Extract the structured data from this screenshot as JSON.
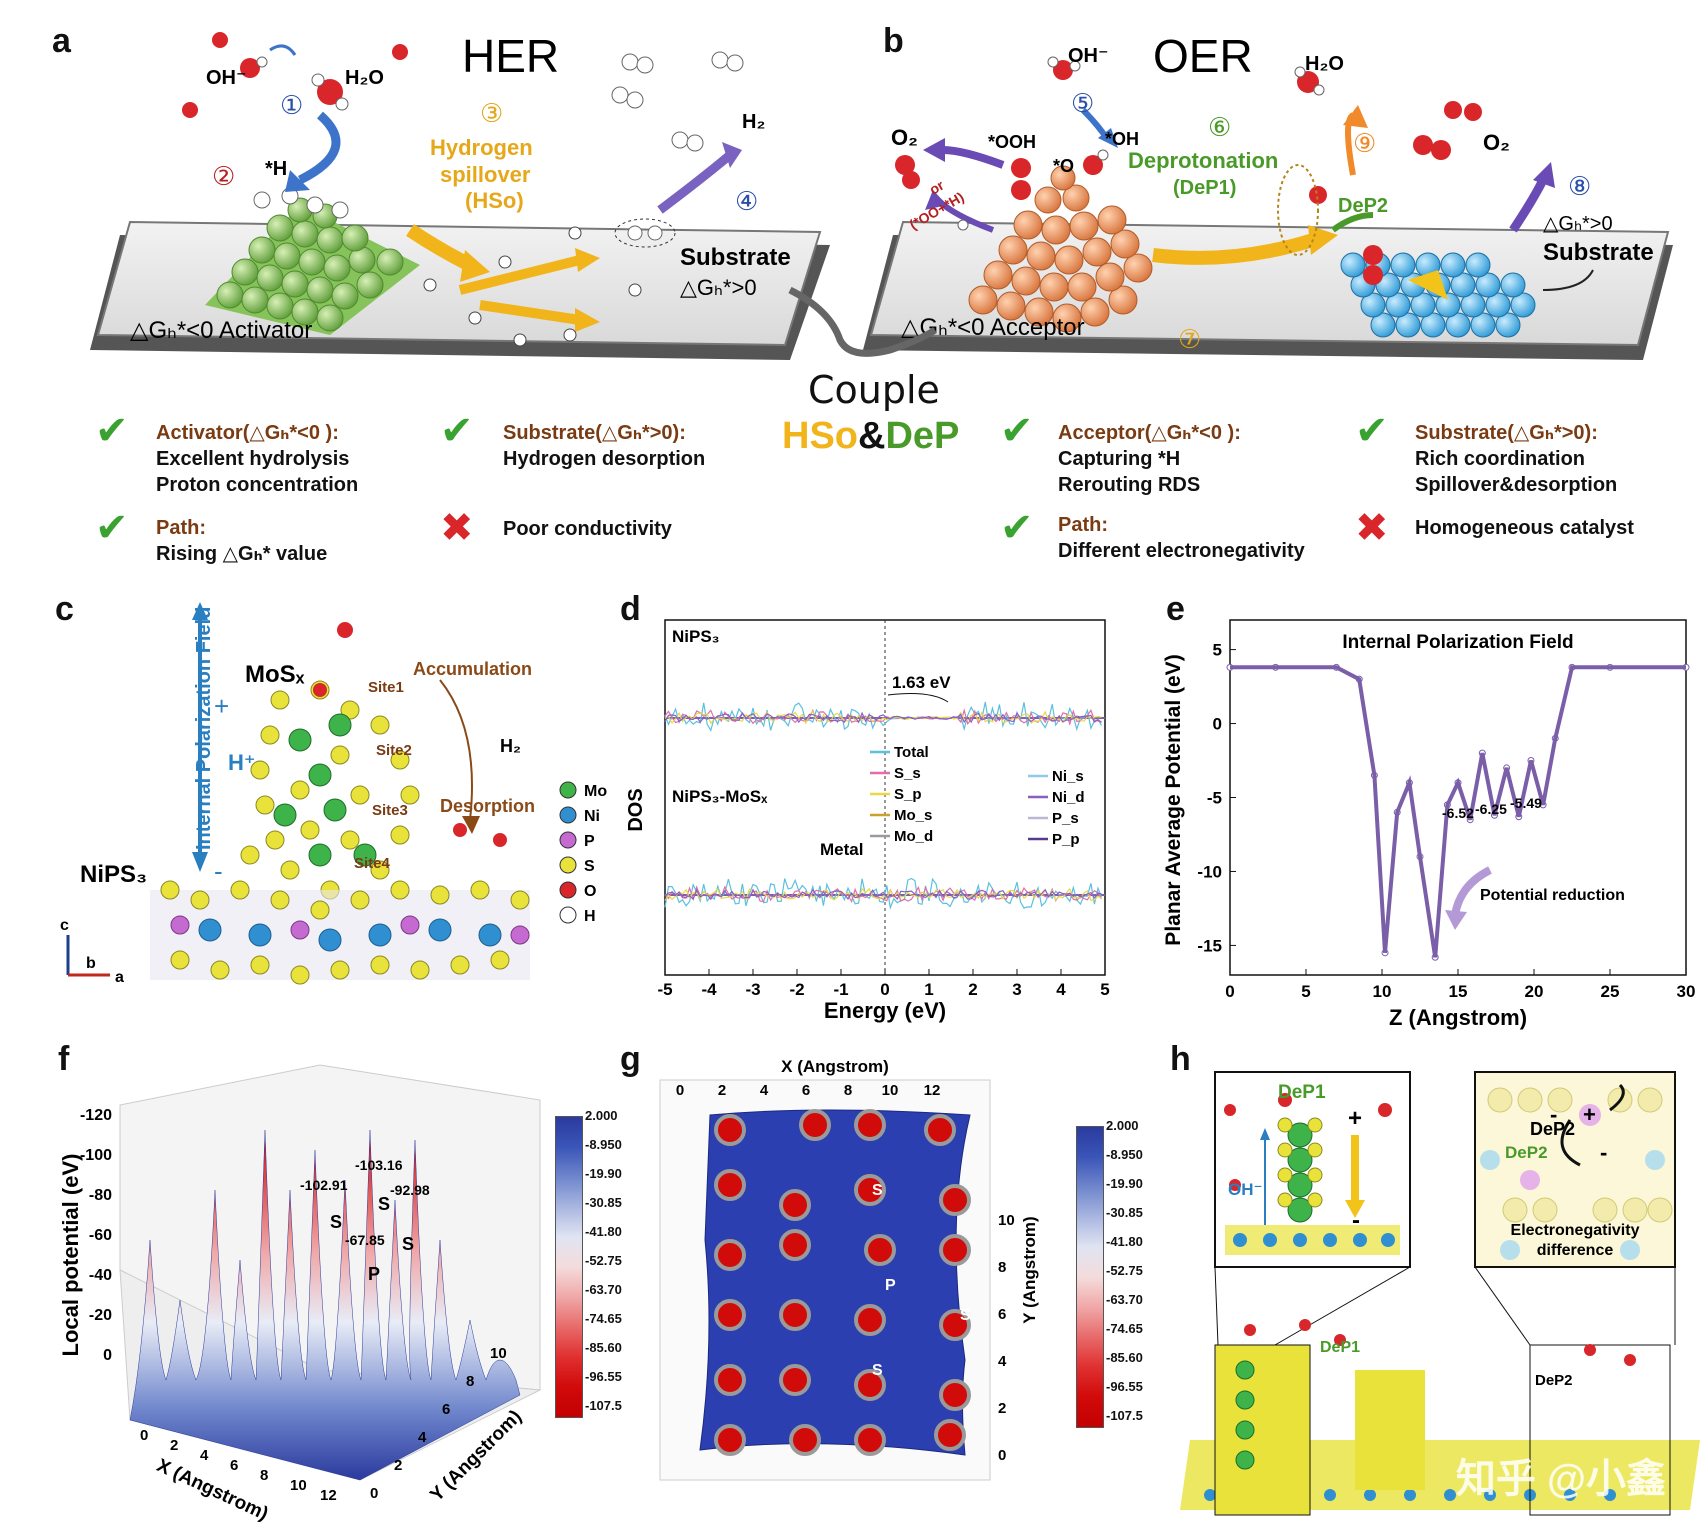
{
  "panel_labels": {
    "a": "a",
    "b": "b",
    "c": "c",
    "d": "d",
    "e": "e",
    "f": "f",
    "g": "g",
    "h": "h"
  },
  "a": {
    "title": "HER",
    "oh": "OH⁻",
    "h2o": "H₂O",
    "h": "*H",
    "h2": "H₂",
    "spill1": "Hydrogen",
    "spill2": "spillover",
    "spill3": "(HSo)",
    "substrate": "Substrate",
    "dg_sub": "△Gₕ*>0",
    "activator": "△Gₕ*<0 Activator",
    "steps": [
      "①",
      "②",
      "③",
      "④"
    ]
  },
  "b": {
    "title": "OER",
    "oh": "OH⁻",
    "h2o": "H₂O",
    "o2_left": "O₂",
    "o2_right": "O₂",
    "ooh": "*OOH",
    "star_oh": "*OH",
    "star_o": "*O",
    "or1": "or",
    "or2": "(*OO+*H)",
    "dep1": "Deprotonation",
    "dep1b": "(DeP1)",
    "dep2": "DeP2",
    "substrate": "Substrate",
    "dg_sub": "△Gₕ*>0",
    "acceptor": "△Gₕ*<0 Acceptor",
    "steps": [
      "⑤",
      "⑥",
      "⑦",
      "⑧",
      "⑨"
    ]
  },
  "couple": {
    "line1": "Couple",
    "hso": "HSo",
    "amp": "&",
    "dep": "DeP"
  },
  "notes": {
    "n1_h": "Activator(△Gₕ*<0 ):",
    "n1_a": "Excellent hydrolysis",
    "n1_b": "Proton concentration",
    "n2_h": "Substrate(△Gₕ*>0):",
    "n2_a": "Hydrogen desorption",
    "n3_h": "Path:",
    "n3_a": "Rising △Gₕ* value",
    "n4_a": "Poor conductivity",
    "n5_h": "Acceptor(△Gₕ*<0 ):",
    "n5_a": "Capturing *H",
    "n5_b": "Rerouting RDS",
    "n6_h": "Substrate(△Gₕ*>0):",
    "n6_a": "Rich coordination",
    "n6_b": "Spillover&desorption",
    "n7_h": "Path:",
    "n7_a": "Different electronegativity",
    "n8_a": "Homogeneous catalyst"
  },
  "c": {
    "mos": "MoSₓ",
    "nips": "NiPS₃",
    "field": "Internal Polarization Field",
    "plus": "+",
    "minus": "-",
    "hplus": "H⁺",
    "accum": "Accumulation",
    "desorp": "Desorption",
    "h2": "H₂",
    "sites": [
      "Site1",
      "Site2",
      "Site3",
      "Site4"
    ],
    "axes": {
      "c": "c",
      "b": "b",
      "a": "a"
    },
    "legend": [
      {
        "label": "Mo",
        "color": "#3db34a"
      },
      {
        "label": "Ni",
        "color": "#2f8fd0"
      },
      {
        "label": "P",
        "color": "#c46ad0"
      },
      {
        "label": "S",
        "color": "#e8e23a"
      },
      {
        "label": "O",
        "color": "#d8262a"
      },
      {
        "label": "H",
        "color": "#ffffff"
      }
    ]
  },
  "chart_data": [
    {
      "type": "line",
      "panel": "d",
      "xlabel": "Energy (eV)",
      "ylabel": "DOS",
      "xlim": [
        -5,
        5
      ],
      "x_ticks": [
        "-5",
        "-4",
        "-3",
        "-2",
        "-1",
        "0",
        "1",
        "2",
        "3",
        "4",
        "5"
      ],
      "subplot_labels": [
        "NiPS₃",
        "NiPS₃-MoSₓ"
      ],
      "annotations": [
        "1.63 eV",
        "Metal"
      ],
      "legend_col1": [
        "Total",
        "S_s",
        "S_p",
        "Mo_s",
        "Mo_d"
      ],
      "legend_col2": [
        "Ni_s",
        "Ni_d",
        "P_s",
        "P_p"
      ],
      "colors": {
        "Total": "#5bc0de",
        "S_s": "#e06fa8",
        "S_p": "#e8d84a",
        "Mo_s": "#c9a227",
        "Mo_d": "#9a9a9a",
        "Ni_s": "#8fcbe8",
        "Ni_d": "#8b5fbf",
        "P_s": "#b9b9d6",
        "P_p": "#5a3a8c"
      }
    },
    {
      "type": "line",
      "panel": "e",
      "title": "Internal Polarization Field",
      "xlabel": "Z (Angstrom)",
      "ylabel": "Planar Average Potential (eV)",
      "xlim": [
        0,
        30
      ],
      "ylim": [
        -17,
        7
      ],
      "x_ticks": [
        0,
        5,
        10,
        15,
        20,
        25,
        30
      ],
      "y_ticks": [
        5,
        0,
        -5,
        -10,
        -15
      ],
      "x": [
        0,
        3,
        7,
        8.5,
        9.5,
        10.2,
        11,
        11.8,
        12.5,
        13.5,
        14.3,
        15,
        15.8,
        16.6,
        17.4,
        18.2,
        19,
        19.8,
        20.6,
        21.4,
        22.5,
        25,
        30
      ],
      "y": [
        3.8,
        3.8,
        3.8,
        3.0,
        -3.5,
        -15.5,
        -6.0,
        -4.0,
        -9.0,
        -15.8,
        -5.5,
        -4.0,
        -6.5,
        -2.0,
        -6.2,
        -3.0,
        -6.3,
        -2.5,
        -5.5,
        -1.0,
        3.8,
        3.8,
        3.8
      ],
      "annotations": [
        "-6.52",
        "-6.25",
        "-5.49",
        "Potential reduction"
      ],
      "color": "#7b5ea8"
    },
    {
      "type": "heatmap",
      "panel": "f",
      "zlabel": "Local potential (eV)",
      "xlabel": "X (Angstrom)",
      "ylabel": "Y (Angstrom)",
      "z_ticks": [
        "-120",
        "-100",
        "-80",
        "-60",
        "-40",
        "-20",
        "0"
      ],
      "x_ticks": [
        "0",
        "2",
        "4",
        "6",
        "8",
        "10",
        "12"
      ],
      "y_ticks": [
        "0",
        "2",
        "4",
        "6",
        "8",
        "10"
      ],
      "annotations": [
        "-102.91",
        "-103.16",
        "-92.98",
        "-67.85"
      ],
      "atoms": [
        "S",
        "S",
        "S",
        "P"
      ]
    },
    {
      "type": "heatmap",
      "panel": "g",
      "xlabel": "X (Angstrom)",
      "ylabel": "Y (Angstrom)",
      "x_ticks": [
        "0",
        "2",
        "4",
        "6",
        "8",
        "10",
        "12"
      ],
      "y_ticks": [
        "0",
        "2",
        "4",
        "6",
        "8",
        "10"
      ],
      "atoms": [
        "S",
        "P",
        "S",
        "S"
      ]
    }
  ],
  "colorbar": {
    "ticks": [
      "2.000",
      "-8.950",
      "-19.90",
      "-30.85",
      "-41.80",
      "-52.75",
      "-63.70",
      "-74.65",
      "-85.60",
      "-96.55",
      "-107.5"
    ],
    "colors": [
      "#2b3a9e",
      "#3a55b8",
      "#6f86cc",
      "#a9b6e0",
      "#e0e4f2",
      "#f4dcdc",
      "#f0a8a8",
      "#e86a6a",
      "#e03030",
      "#d10a0a",
      "#c40000"
    ]
  },
  "h": {
    "dep1": "DeP1",
    "dep2": "DeP2",
    "oh": "OH⁻",
    "plus": "+",
    "minus": "-",
    "elec1": "Electronegativity",
    "elec2": "difference",
    "dep1b": "DeP1",
    "dep2b": "DeP2"
  },
  "watermark": "知乎 @小鑫"
}
